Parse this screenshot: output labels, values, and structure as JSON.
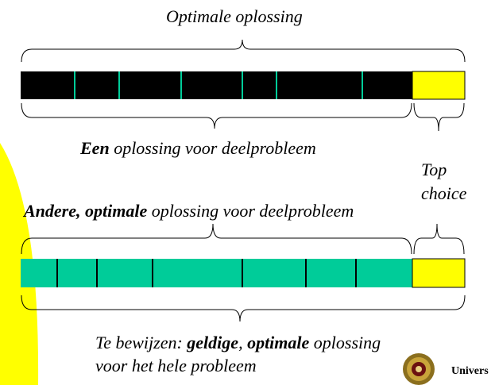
{
  "labels": {
    "optimal_solution": "Optimale oplossing",
    "subproblem_solution": {
      "bold": "Een",
      "rest": " oplossing voor deelprobleem"
    },
    "top_choice_line1": "Top",
    "top_choice_line2": "choice",
    "other_solution": {
      "bold": "Andere, optimale",
      "rest": " oplossing voor deelprobleem"
    },
    "prove": {
      "part1": "Te bewijzen: ",
      "bold1": "geldige",
      "sep": ", ",
      "bold2": "optimale",
      "part2": " oplossing",
      "line2": "voor het hele probleem"
    },
    "university_text": "Univers"
  },
  "bars": {
    "top_bar": {
      "fill": "#000000",
      "divider_color": "#00CC99",
      "highlight_fill": "#FFFF00"
    },
    "bottom_bar": {
      "fill": "#00CC99",
      "divider_color": "#000000",
      "highlight_fill": "#FFFF00"
    }
  },
  "colors": {
    "yellow_arc": "#FFFF00",
    "seal": "#8B6F1E"
  },
  "icons": {
    "logo": "university-seal-icon"
  }
}
